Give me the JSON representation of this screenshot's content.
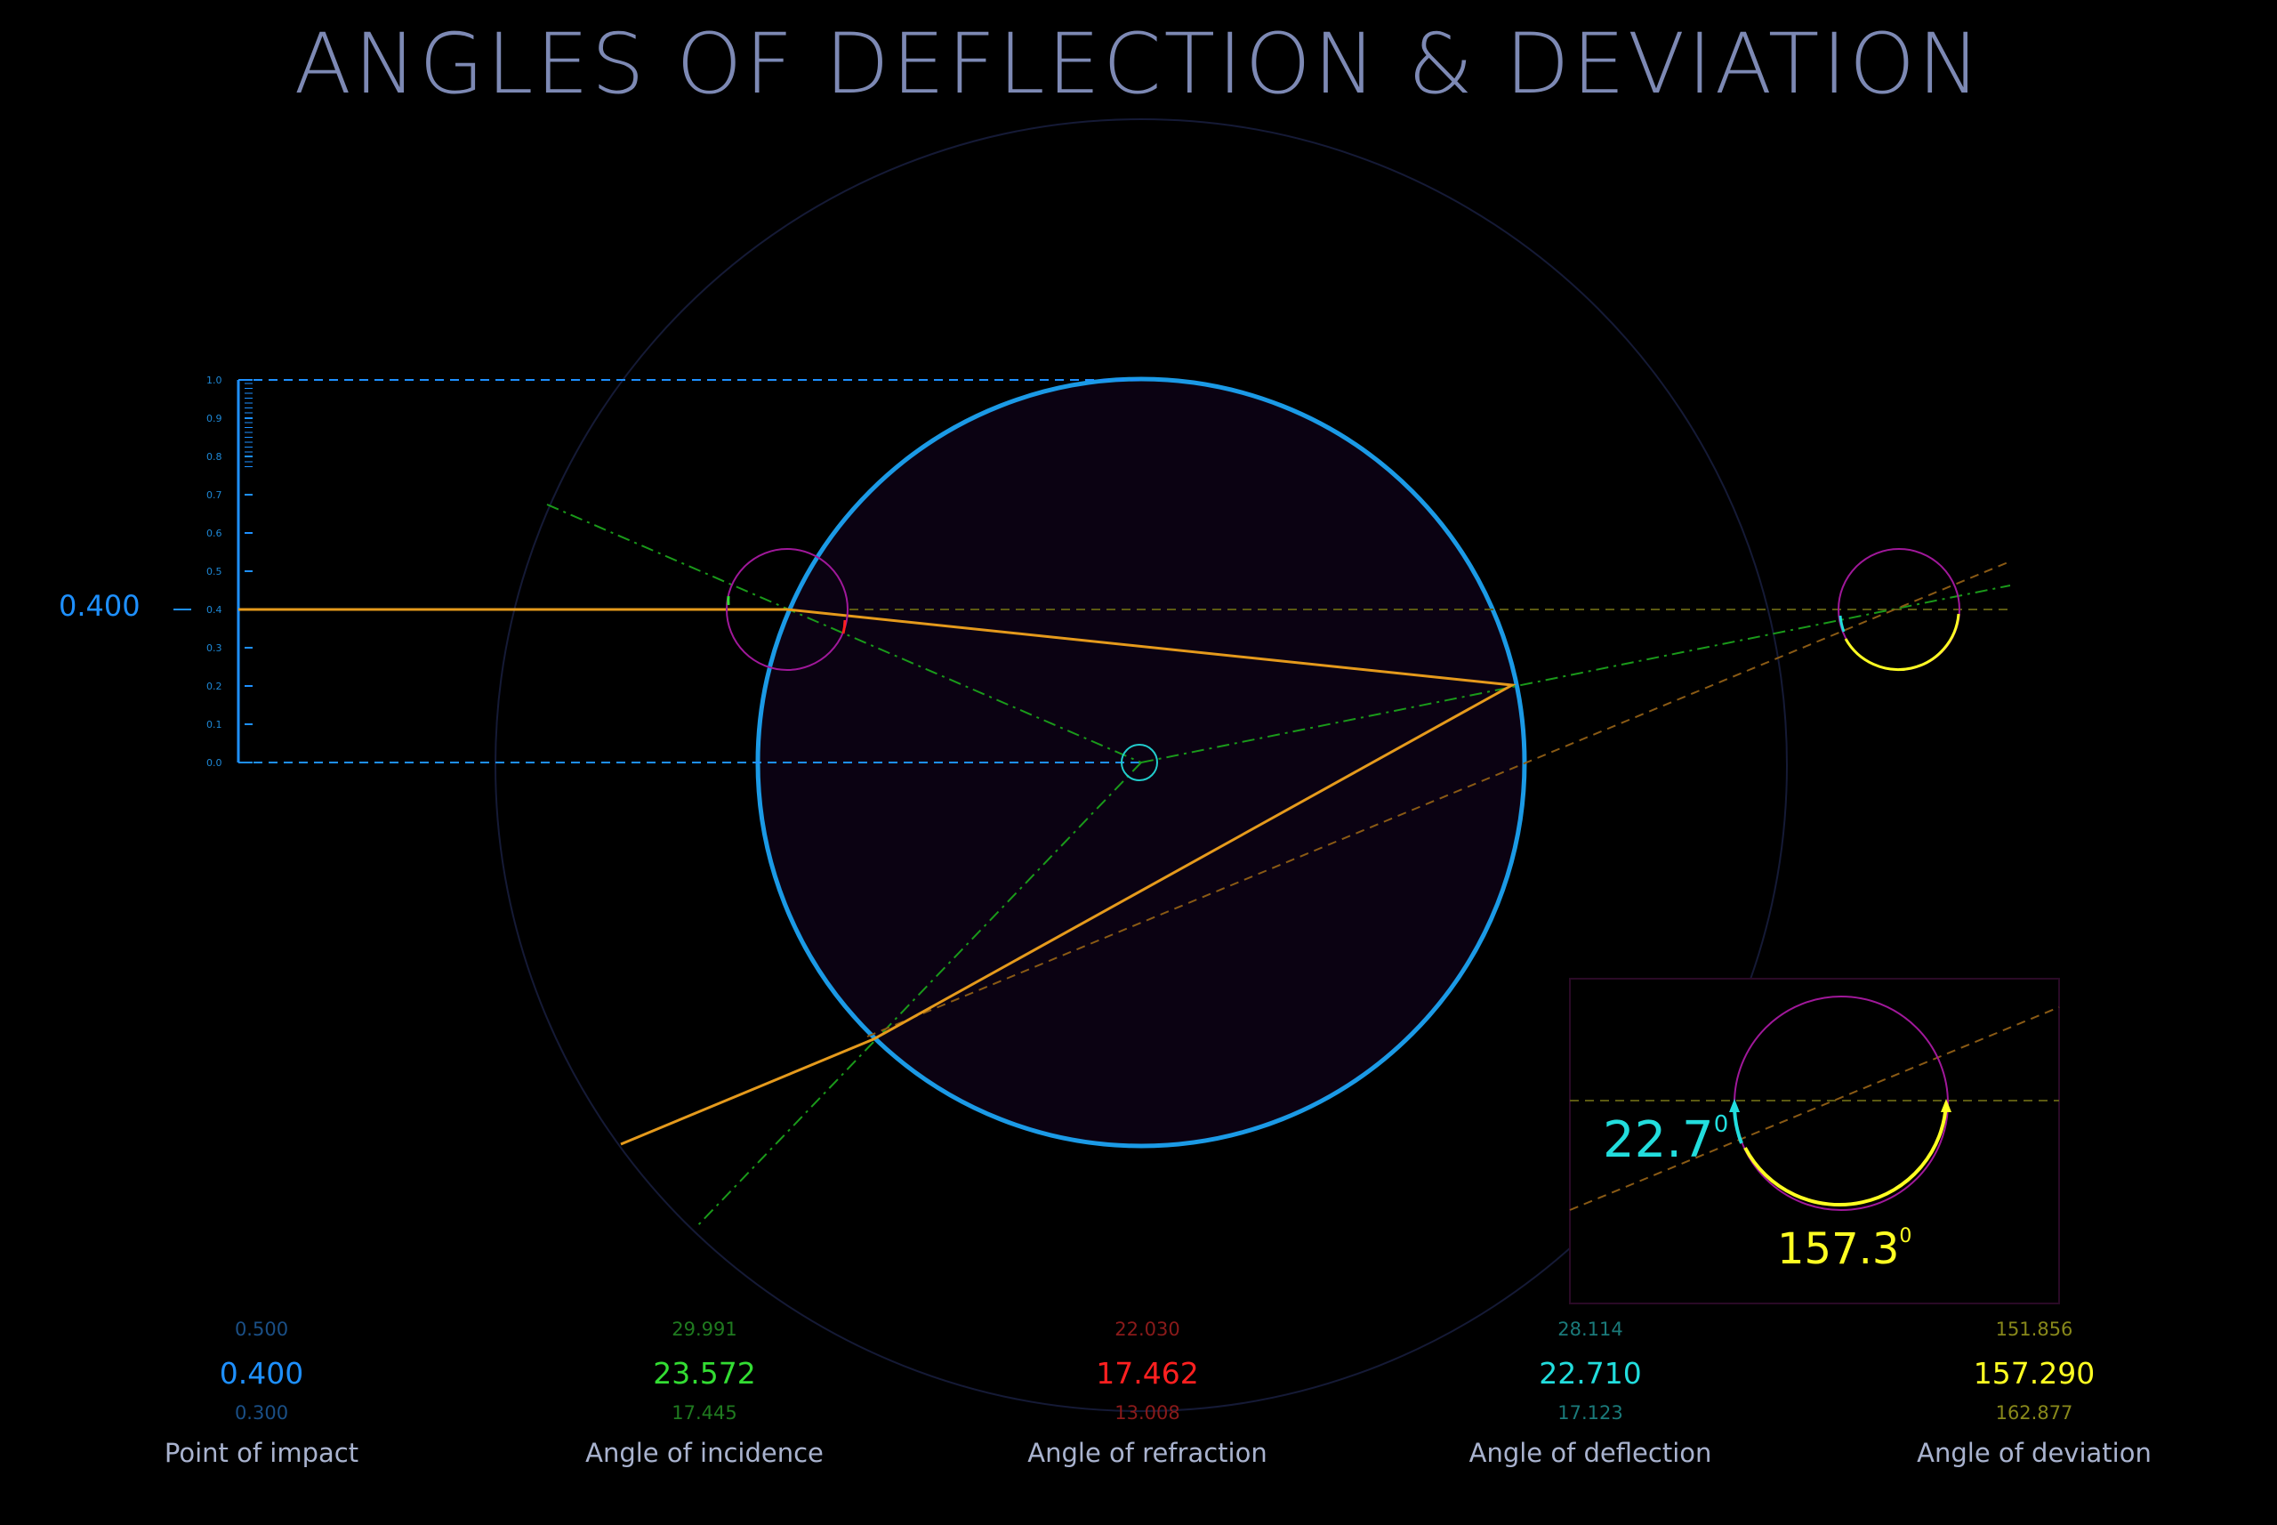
{
  "title": "ANGLES OF DEFLECTION & DEVIATION",
  "impact_readout": "0.400",
  "scale_ticks": [
    "1.0",
    "0.9",
    "0.8",
    "0.7",
    "0.6",
    "0.5",
    "0.4",
    "0.3",
    "0.2",
    "0.1",
    "0.0"
  ],
  "inset": {
    "deflection_value": "22.7",
    "deviation_value": "157.3",
    "degree_mark": "0"
  },
  "stats": [
    {
      "label": "Point of impact",
      "max": "0.500",
      "current": "0.400",
      "min": "0.300",
      "color": "#1e90ff",
      "dim_color": "#1a4f86"
    },
    {
      "label": "Angle of  incidence",
      "max": "29.991",
      "current": "23.572",
      "min": "17.445",
      "color": "#33dd33",
      "dim_color": "#1f7a1f"
    },
    {
      "label": "Angle of refraction",
      "max": "22.030",
      "current": "17.462",
      "min": "13.008",
      "color": "#ff2020",
      "dim_color": "#8a1a1a"
    },
    {
      "label": "Angle of deflection",
      "max": "28.114",
      "current": "22.710",
      "min": "17.123",
      "color": "#22dddd",
      "dim_color": "#1a7a7a"
    },
    {
      "label": "Angle of deviation",
      "max": "151.856",
      "current": "157.290",
      "min": "162.877",
      "color": "#ffff22",
      "dim_color": "#88881a"
    }
  ],
  "colors": {
    "title": "#7d89b4",
    "drop": "#1e90ff",
    "ray": "#e59a1c",
    "normal": "#22aa22",
    "marker": "#a0189a",
    "deflection": "#22dddd",
    "deviation": "#ffff22",
    "label": "#a9b3cf"
  }
}
